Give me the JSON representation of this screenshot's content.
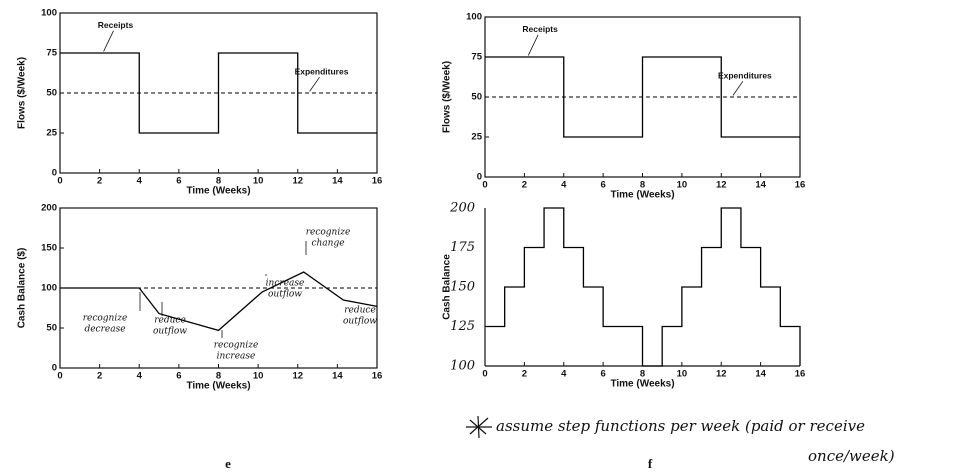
{
  "chart_data": [
    {
      "type": "line",
      "xlabel": "Time (Weeks)",
      "ylabel": "Flows ($/Week)",
      "xlim": [
        0,
        16
      ],
      "xticks": [
        0,
        2,
        4,
        6,
        8,
        10,
        12,
        14,
        16
      ],
      "ylim": [
        0,
        100
      ],
      "yticks": [
        0,
        25,
        50,
        75,
        100
      ],
      "series": [
        {
          "name": "Receipts",
          "color": "#000000",
          "x": [
            0,
            4,
            4,
            8,
            8,
            12,
            12,
            16
          ],
          "values": [
            75,
            75,
            25,
            25,
            75,
            75,
            25,
            25
          ]
        },
        {
          "name": "Expenditures",
          "color": "#000000",
          "dashed": true,
          "x": [
            0,
            16
          ],
          "values": [
            50,
            50
          ]
        }
      ]
    },
    {
      "type": "line",
      "xlabel": "Time (Weeks)",
      "ylabel": "Cash Balance ($)",
      "xlim": [
        0,
        16
      ],
      "xticks": [
        0,
        2,
        4,
        6,
        8,
        10,
        12,
        14,
        16
      ],
      "ylim": [
        0,
        200
      ],
      "yticks": [
        0,
        50,
        100,
        150,
        200
      ],
      "series": [
        {
          "color": "#000000",
          "x": [
            0,
            4,
            5,
            8,
            10.2,
            12.3,
            14.3,
            16
          ],
          "values": [
            100,
            100,
            68,
            47,
            95,
            120,
            85,
            77
          ]
        },
        {
          "color": "#000000",
          "dashed": true,
          "x": [
            0,
            16
          ],
          "values": [
            100,
            100
          ]
        }
      ],
      "annotations": [
        {
          "lines": [
            "recognize",
            "decrease"
          ]
        },
        {
          "lines": [
            "reduce",
            "outflow"
          ]
        },
        {
          "lines": [
            "recognize",
            "increase"
          ]
        },
        {
          "lines": [
            "increase",
            "outflow"
          ]
        },
        {
          "lines": [
            "recognize",
            "change"
          ]
        },
        {
          "lines": [
            "reduce",
            "outflow"
          ]
        }
      ]
    },
    {
      "type": "line",
      "xlabel": "Time (Weeks)",
      "ylabel": "Flows ($/Week)",
      "xlim": [
        0,
        16
      ],
      "xticks": [
        0,
        2,
        4,
        6,
        8,
        10,
        12,
        14,
        16
      ],
      "ylim": [
        0,
        100
      ],
      "yticks": [
        0,
        25,
        50,
        75,
        100
      ],
      "series": [
        {
          "name": "Receipts",
          "color": "#000000",
          "x": [
            0,
            4,
            4,
            8,
            8,
            12,
            12,
            16
          ],
          "values": [
            75,
            75,
            25,
            25,
            75,
            75,
            25,
            25
          ]
        },
        {
          "name": "Expenditures",
          "color": "#000000",
          "dashed": true,
          "x": [
            0,
            16
          ],
          "values": [
            50,
            50
          ]
        }
      ]
    },
    {
      "type": "line",
      "xlabel": "Time (Weeks)",
      "ylabel": "Cash Balance",
      "xlim": [
        0,
        16
      ],
      "xticks": [
        0,
        2,
        4,
        6,
        8,
        10,
        12,
        14,
        16
      ],
      "ylim": [
        100,
        200
      ],
      "yticks": [
        100,
        125,
        150,
        175,
        200
      ],
      "handwritten_yticks": true,
      "series": [
        {
          "color": "#000000",
          "drawstyle": "steps-post",
          "x": [
            0,
            1,
            2,
            3,
            4,
            5,
            6,
            7,
            8,
            9,
            10,
            11,
            12,
            13,
            14,
            15,
            16
          ],
          "values": [
            125,
            150,
            175,
            200,
            175,
            150,
            125,
            125,
            100,
            125,
            150,
            175,
            200,
            175,
            150,
            125,
            100
          ]
        }
      ]
    }
  ],
  "panel_labels": [
    "e",
    "f"
  ],
  "note": [
    "assume step functions per week (paid or receive",
    "once/week)"
  ]
}
